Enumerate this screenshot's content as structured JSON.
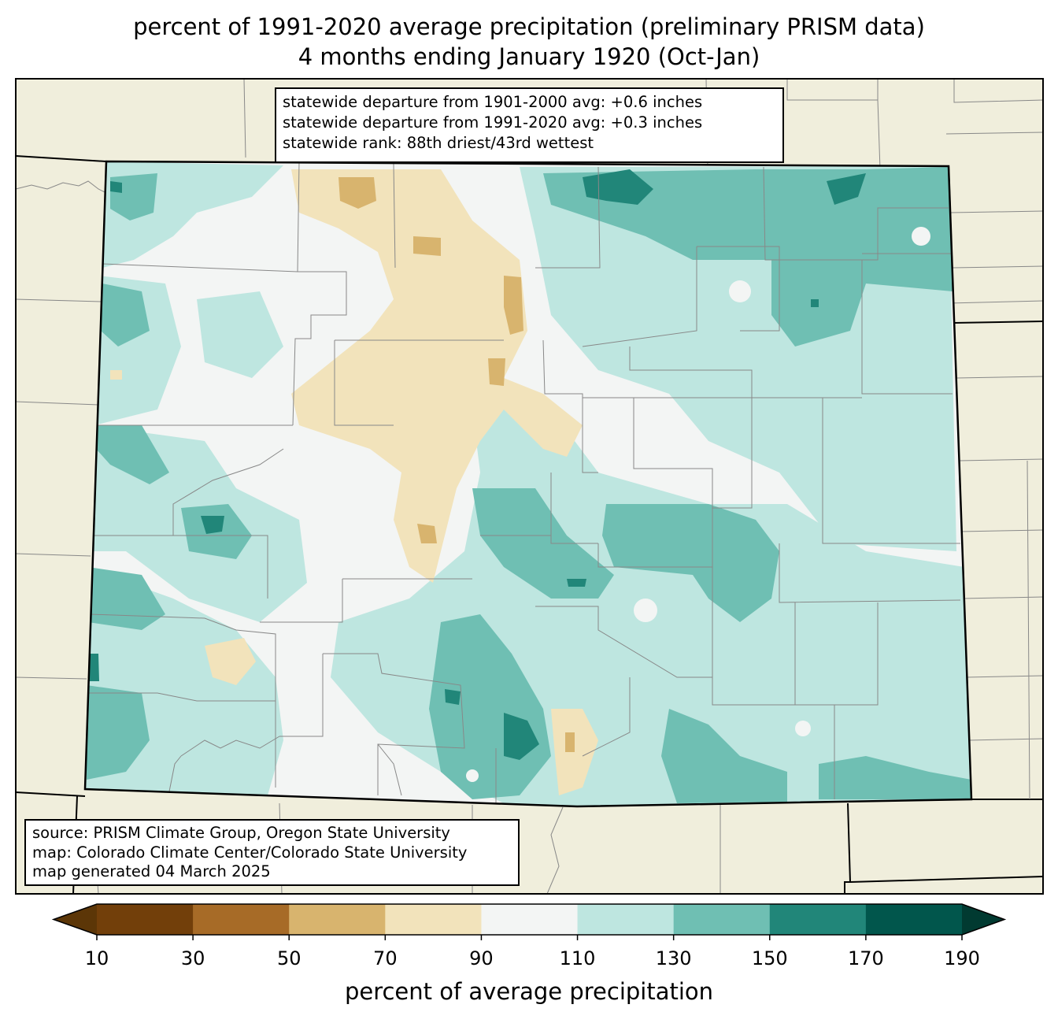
{
  "title": {
    "line1": "percent of 1991-2020 average precipitation (preliminary PRISM data)",
    "line2": "4 months ending January 1920 (Oct-Jan)"
  },
  "stats": {
    "line1": "statewide departure from 1901-2000 avg: +0.6 inches",
    "line2": "statewide departure from 1991-2020 avg: +0.3 inches",
    "line3": "statewide rank: 88th driest/43rd wettest"
  },
  "source": {
    "line1": "source: PRISM Climate Group, Oregon State University",
    "line2": "map: Colorado Climate Center/Colorado State University",
    "line3": "map generated 04 March 2025"
  },
  "colorbar": {
    "label": "percent of average precipitation",
    "ticks": [
      "10",
      "30",
      "50",
      "70",
      "90",
      "110",
      "130",
      "150",
      "170",
      "190"
    ],
    "colors": [
      "#5c3607",
      "#723f0a",
      "#a76b27",
      "#d8b46e",
      "#f2e3bb",
      "#f3f5f4",
      "#bee6e0",
      "#6fbfb3",
      "#218679",
      "#01564c",
      "#013a31"
    ],
    "background_color": "#f0eedc"
  }
}
